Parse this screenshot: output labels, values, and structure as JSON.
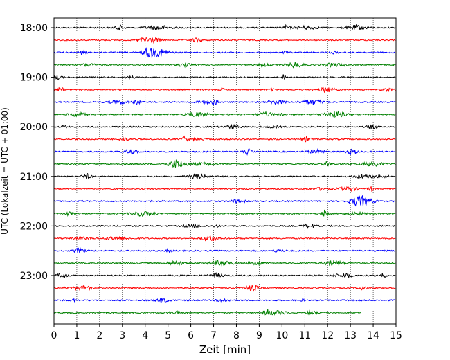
{
  "chart_data": {
    "type": "line",
    "xlabel": "Zeit  [min]",
    "ylabel": "UTC (Lokalzeit = UTC + 01:00)",
    "xlim": [
      0,
      15
    ],
    "x_ticks": [
      "0",
      "1",
      "2",
      "3",
      "4",
      "5",
      "6",
      "7",
      "8",
      "9",
      "10",
      "11",
      "12",
      "13",
      "14",
      "15"
    ],
    "y_ticks": [
      {
        "label": "18:00",
        "trace_index": 0
      },
      {
        "label": "19:00",
        "trace_index": 4
      },
      {
        "label": "20:00",
        "trace_index": 8
      },
      {
        "label": "21:00",
        "trace_index": 12
      },
      {
        "label": "22:00",
        "trace_index": 16
      },
      {
        "label": "23:00",
        "trace_index": 20
      }
    ],
    "grid": "vertical dotted",
    "trace_interval_min": 15,
    "traces": [
      {
        "start": "18:00",
        "color": "#000000",
        "end_min": 15
      },
      {
        "start": "18:15",
        "color": "#ff0000",
        "end_min": 15
      },
      {
        "start": "18:30",
        "color": "#0000ff",
        "end_min": 15
      },
      {
        "start": "18:45",
        "color": "#008000",
        "end_min": 15
      },
      {
        "start": "19:00",
        "color": "#000000",
        "end_min": 15
      },
      {
        "start": "19:15",
        "color": "#ff0000",
        "end_min": 15
      },
      {
        "start": "19:30",
        "color": "#0000ff",
        "end_min": 15
      },
      {
        "start": "19:45",
        "color": "#008000",
        "end_min": 15
      },
      {
        "start": "20:00",
        "color": "#000000",
        "end_min": 15
      },
      {
        "start": "20:15",
        "color": "#ff0000",
        "end_min": 15
      },
      {
        "start": "20:30",
        "color": "#0000ff",
        "end_min": 15
      },
      {
        "start": "20:45",
        "color": "#008000",
        "end_min": 15
      },
      {
        "start": "21:00",
        "color": "#000000",
        "end_min": 15
      },
      {
        "start": "21:15",
        "color": "#ff0000",
        "end_min": 15
      },
      {
        "start": "21:30",
        "color": "#0000ff",
        "end_min": 15
      },
      {
        "start": "21:45",
        "color": "#008000",
        "end_min": 15
      },
      {
        "start": "22:00",
        "color": "#000000",
        "end_min": 15
      },
      {
        "start": "22:15",
        "color": "#ff0000",
        "end_min": 15
      },
      {
        "start": "22:30",
        "color": "#0000ff",
        "end_min": 15
      },
      {
        "start": "22:45",
        "color": "#008000",
        "end_min": 15
      },
      {
        "start": "23:00",
        "color": "#000000",
        "end_min": 15
      },
      {
        "start": "23:15",
        "color": "#ff0000",
        "end_min": 15
      },
      {
        "start": "23:30",
        "color": "#0000ff",
        "end_min": 15
      },
      {
        "start": "23:45",
        "color": "#008000",
        "end_min": 13.45
      }
    ]
  }
}
